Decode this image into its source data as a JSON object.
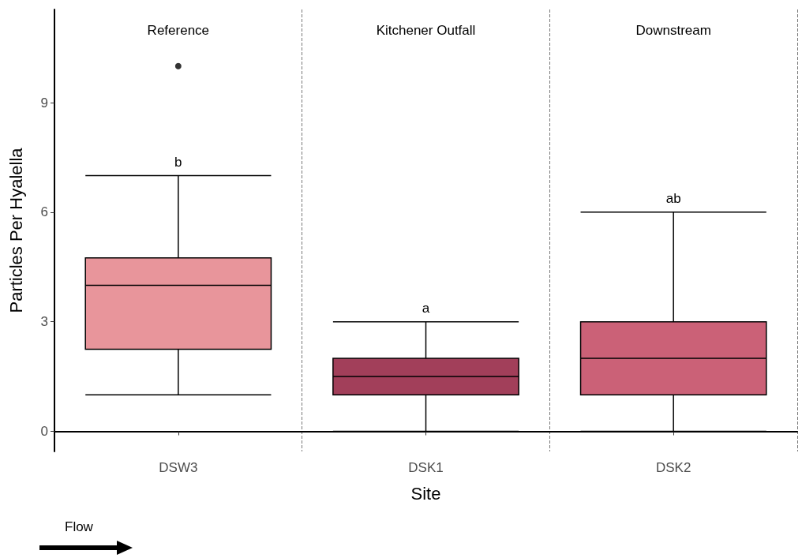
{
  "chart_data": {
    "type": "box",
    "xlabel": "Site",
    "ylabel": "Particles Per Hyalella",
    "categories": [
      "DSW3",
      "DSK1",
      "DSK2"
    ],
    "boxes": [
      {
        "low": 1,
        "q1": 2.25,
        "median": 4,
        "q3": 4.75,
        "high": 7,
        "outliers": [
          10
        ]
      },
      {
        "low": 0,
        "q1": 1,
        "median": 1.5,
        "q3": 2,
        "high": 3
      },
      {
        "low": 0,
        "q1": 1,
        "median": 2,
        "q3": 3,
        "high": 6
      }
    ],
    "colors": [
      "#e8959b",
      "#a23f5a",
      "#cb6177"
    ],
    "ylim": [
      -0.55,
      11.55
    ],
    "yticks": [
      0,
      3,
      6,
      9
    ],
    "grid": "x",
    "annotations": [
      "Reference",
      "Kitchener Outfall",
      "Downstream",
      "b",
      "a",
      "ab",
      "Flow"
    ]
  }
}
